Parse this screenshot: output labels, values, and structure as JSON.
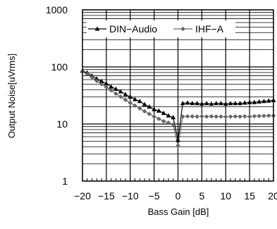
{
  "chart_data": {
    "type": "line",
    "title": "",
    "xlabel": "Bass Gain [dB]",
    "ylabel": "Output Noise[uVrms]",
    "xlim": [
      -20,
      20
    ],
    "ylim": [
      1,
      1000
    ],
    "yscale": "log",
    "x_ticks": [
      -20,
      -15,
      -10,
      -5,
      0,
      5,
      10,
      15,
      20
    ],
    "y_ticks": [
      1,
      10,
      100,
      1000
    ],
    "x_tick_labels": [
      "−20",
      "−15",
      "−10",
      "−5",
      "0",
      "5",
      "10",
      "15",
      "20"
    ],
    "y_tick_labels": [
      "1",
      "10",
      "100",
      "1000"
    ],
    "grid": true,
    "legend_position": "top",
    "colors": {
      "series1": "#000000",
      "series2": "#666666",
      "grid": "#000000"
    },
    "series": [
      {
        "name": "DIN−Audio",
        "marker": "triangle",
        "x": [
          -20,
          -19,
          -18,
          -17,
          -16,
          -15,
          -14,
          -13,
          -12,
          -11,
          -10,
          -9,
          -8,
          -7,
          -6,
          -5,
          -4,
          -3,
          -2,
          -1,
          0,
          1,
          2,
          3,
          4,
          5,
          6,
          7,
          8,
          9,
          10,
          11,
          12,
          13,
          14,
          15,
          16,
          17,
          18,
          19,
          20
        ],
        "y": [
          85,
          79,
          70,
          62,
          56,
          51,
          45,
          41,
          37,
          33,
          30,
          27,
          25,
          22,
          20,
          18,
          17,
          15.5,
          14,
          13,
          5.2,
          23,
          23.5,
          23,
          23,
          22.5,
          23,
          22.5,
          23,
          23,
          22.5,
          23,
          23,
          23,
          23.5,
          24,
          24,
          24.5,
          25,
          25.5,
          26
        ]
      },
      {
        "name": "IHF−A",
        "marker": "diamond",
        "x": [
          -20,
          -19,
          -18,
          -17,
          -16,
          -15,
          -14,
          -13,
          -12,
          -11,
          -10,
          -9,
          -8,
          -7,
          -6,
          -5,
          -4,
          -3,
          -2,
          -1,
          0,
          1,
          2,
          3,
          4,
          5,
          6,
          7,
          8,
          9,
          10,
          11,
          12,
          13,
          14,
          15,
          16,
          17,
          18,
          19,
          20
        ],
        "y": [
          84,
          75,
          66,
          57,
          50,
          44,
          39,
          34,
          30,
          26.5,
          23.5,
          21,
          18.7,
          16.7,
          15,
          13.5,
          12.3,
          11.2,
          10.5,
          9.8,
          4.2,
          13.5,
          13.6,
          13.6,
          13.5,
          13.6,
          13.5,
          13.6,
          13.5,
          13.5,
          13.4,
          13.5,
          13.6,
          13.5,
          13.6,
          13.5,
          13.7,
          13.8,
          13.9,
          14,
          14
        ]
      }
    ]
  }
}
